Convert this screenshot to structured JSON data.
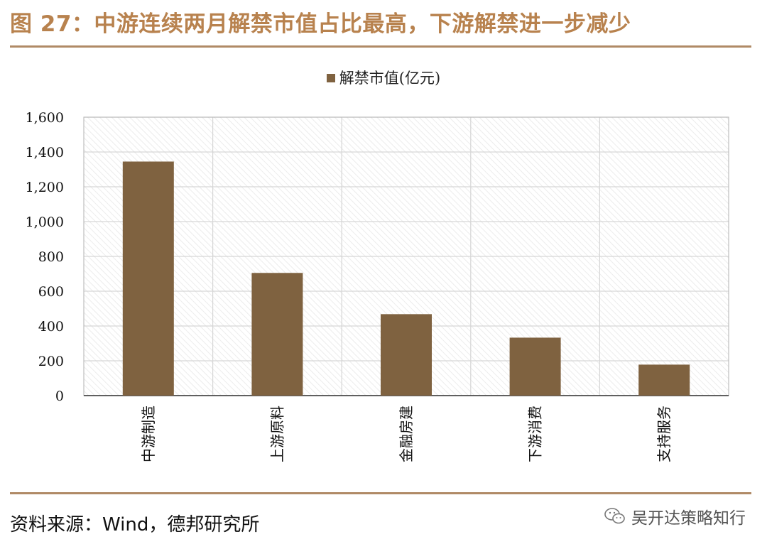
{
  "header": {
    "title": "图 27：中游连续两月解禁市值占比最高，下游解禁进一步减少"
  },
  "legend": {
    "label": "解禁市值(亿元)"
  },
  "footer": {
    "source": "资料来源：Wind，德邦研究所",
    "watermark": "吴开达策略知行",
    "watermark_icon": "wechat-icon"
  },
  "colors": {
    "bar": "#7f6240",
    "title": "#b8824e",
    "rule": "#b08a66"
  },
  "chart_data": {
    "type": "bar",
    "categories": [
      "中游制造",
      "上游原料",
      "金融房建",
      "下游消费",
      "支持服务"
    ],
    "series": [
      {
        "name": "解禁市值(亿元)",
        "values": [
          1345,
          705,
          468,
          333,
          178
        ]
      }
    ],
    "ylim": [
      0,
      1600
    ],
    "yticks": [
      0,
      200,
      400,
      600,
      800,
      1000,
      1200,
      1400,
      1600
    ],
    "ytick_labels": [
      "0",
      "200",
      "400",
      "600",
      "800",
      "1,000",
      "1,200",
      "1,400",
      "1,600"
    ],
    "grid": true,
    "legend_position": "top-center",
    "xlabel": "",
    "ylabel": ""
  }
}
